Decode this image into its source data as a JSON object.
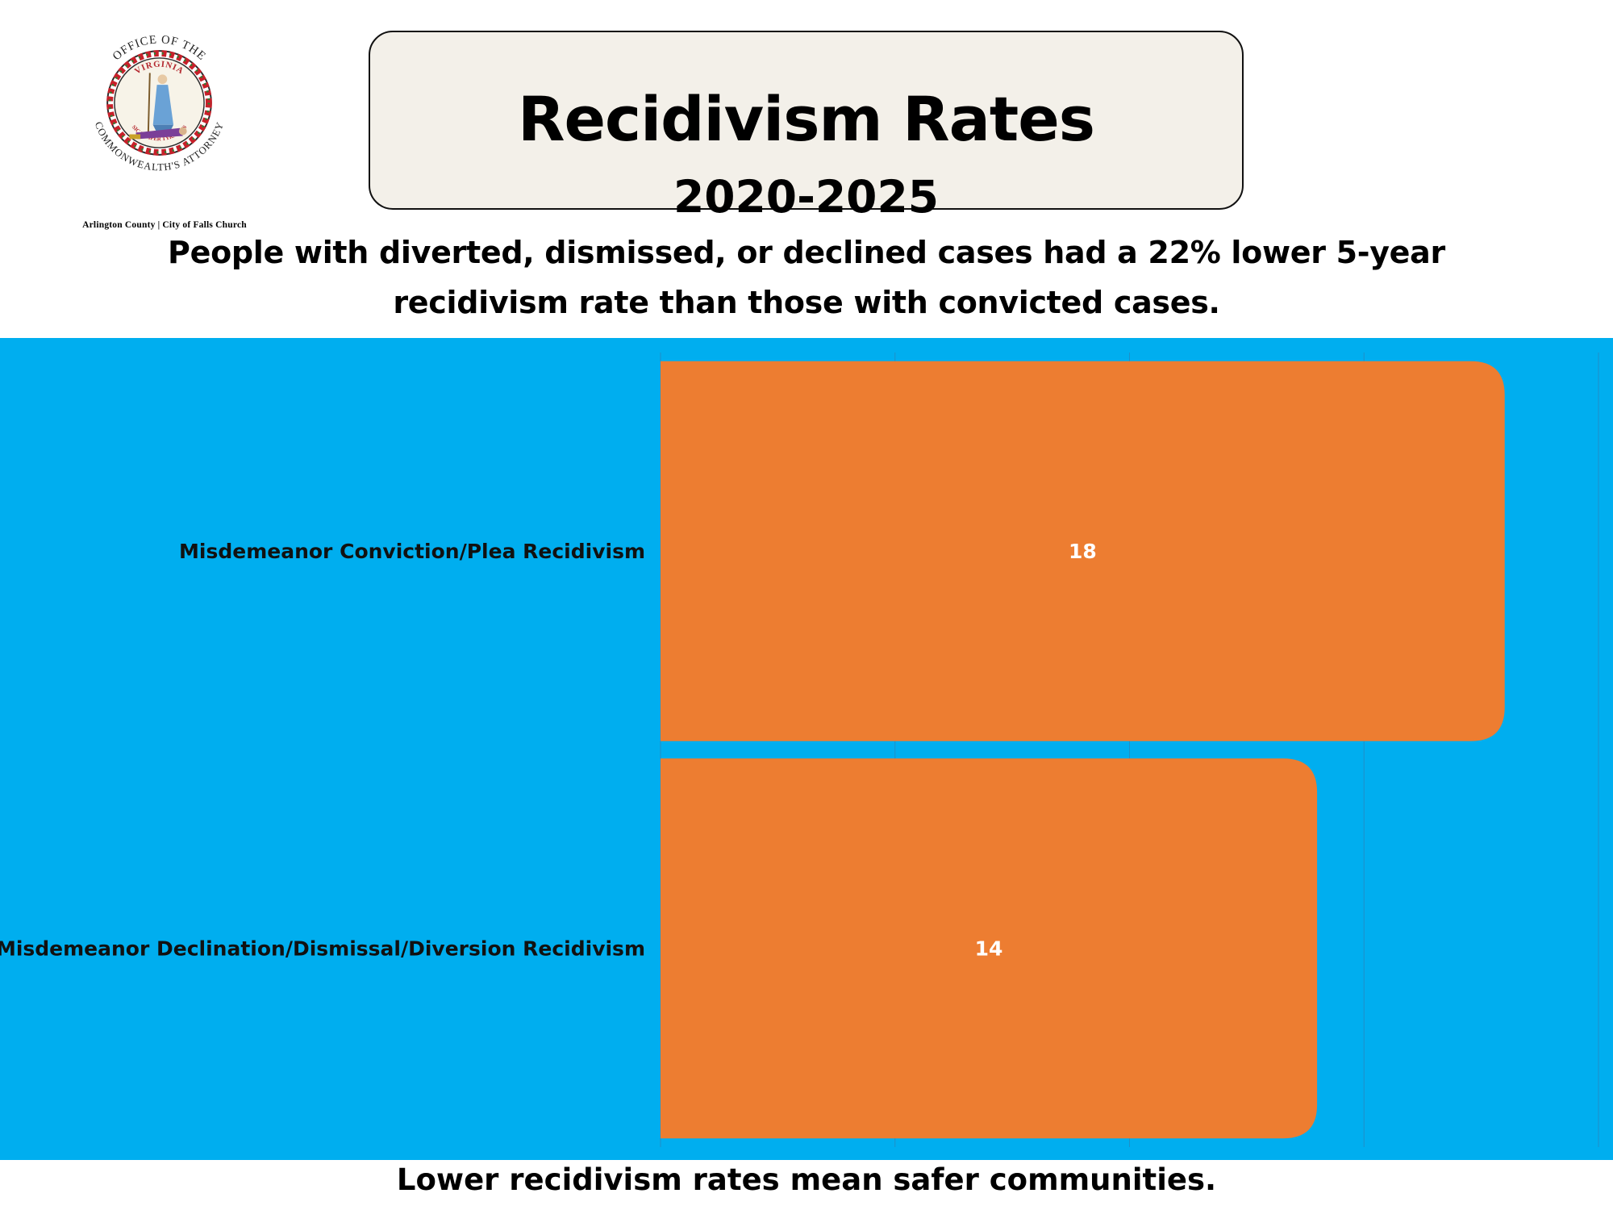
{
  "seal": {
    "ring_top_text": "OFFICE OF THE",
    "ring_bottom_text": "COMMONWEALTH'S ATTORNEY",
    "inner_top_text": "VIRGINIA",
    "motto": "SIC SEMPER TYRANNIS",
    "caption": "Arlington County | City of Falls Church"
  },
  "header": {
    "title": "Recidivism Rates",
    "years": "2020-2025"
  },
  "summary": {
    "line1": "People with diverted, dismissed, or declined cases had a 22% lower 5-year",
    "line2": "recidivism rate than those with convicted cases."
  },
  "footer": {
    "text": "Lower recidivism rates mean safer communities."
  },
  "colors": {
    "panel_background": "#00aeef",
    "bar": "#ed7d31",
    "bar_label": "#ffffff",
    "title_box": "#f3f0e9",
    "gridline": "#1f8fc7"
  },
  "chart_data": {
    "type": "bar",
    "orientation": "horizontal",
    "categories": [
      "Misdemeanor Conviction/Plea Recidivism",
      "Misdemeanor Declination/Dismissal/Diversion Recidivism"
    ],
    "values": [
      18,
      14
    ],
    "xlim": [
      0,
      20
    ],
    "gridlines_x": [
      0,
      5,
      10,
      15,
      20
    ],
    "grid": true,
    "show_x_tick_labels": false,
    "data_labels": [
      "18",
      "14"
    ],
    "title": "",
    "xlabel": "",
    "ylabel": ""
  }
}
